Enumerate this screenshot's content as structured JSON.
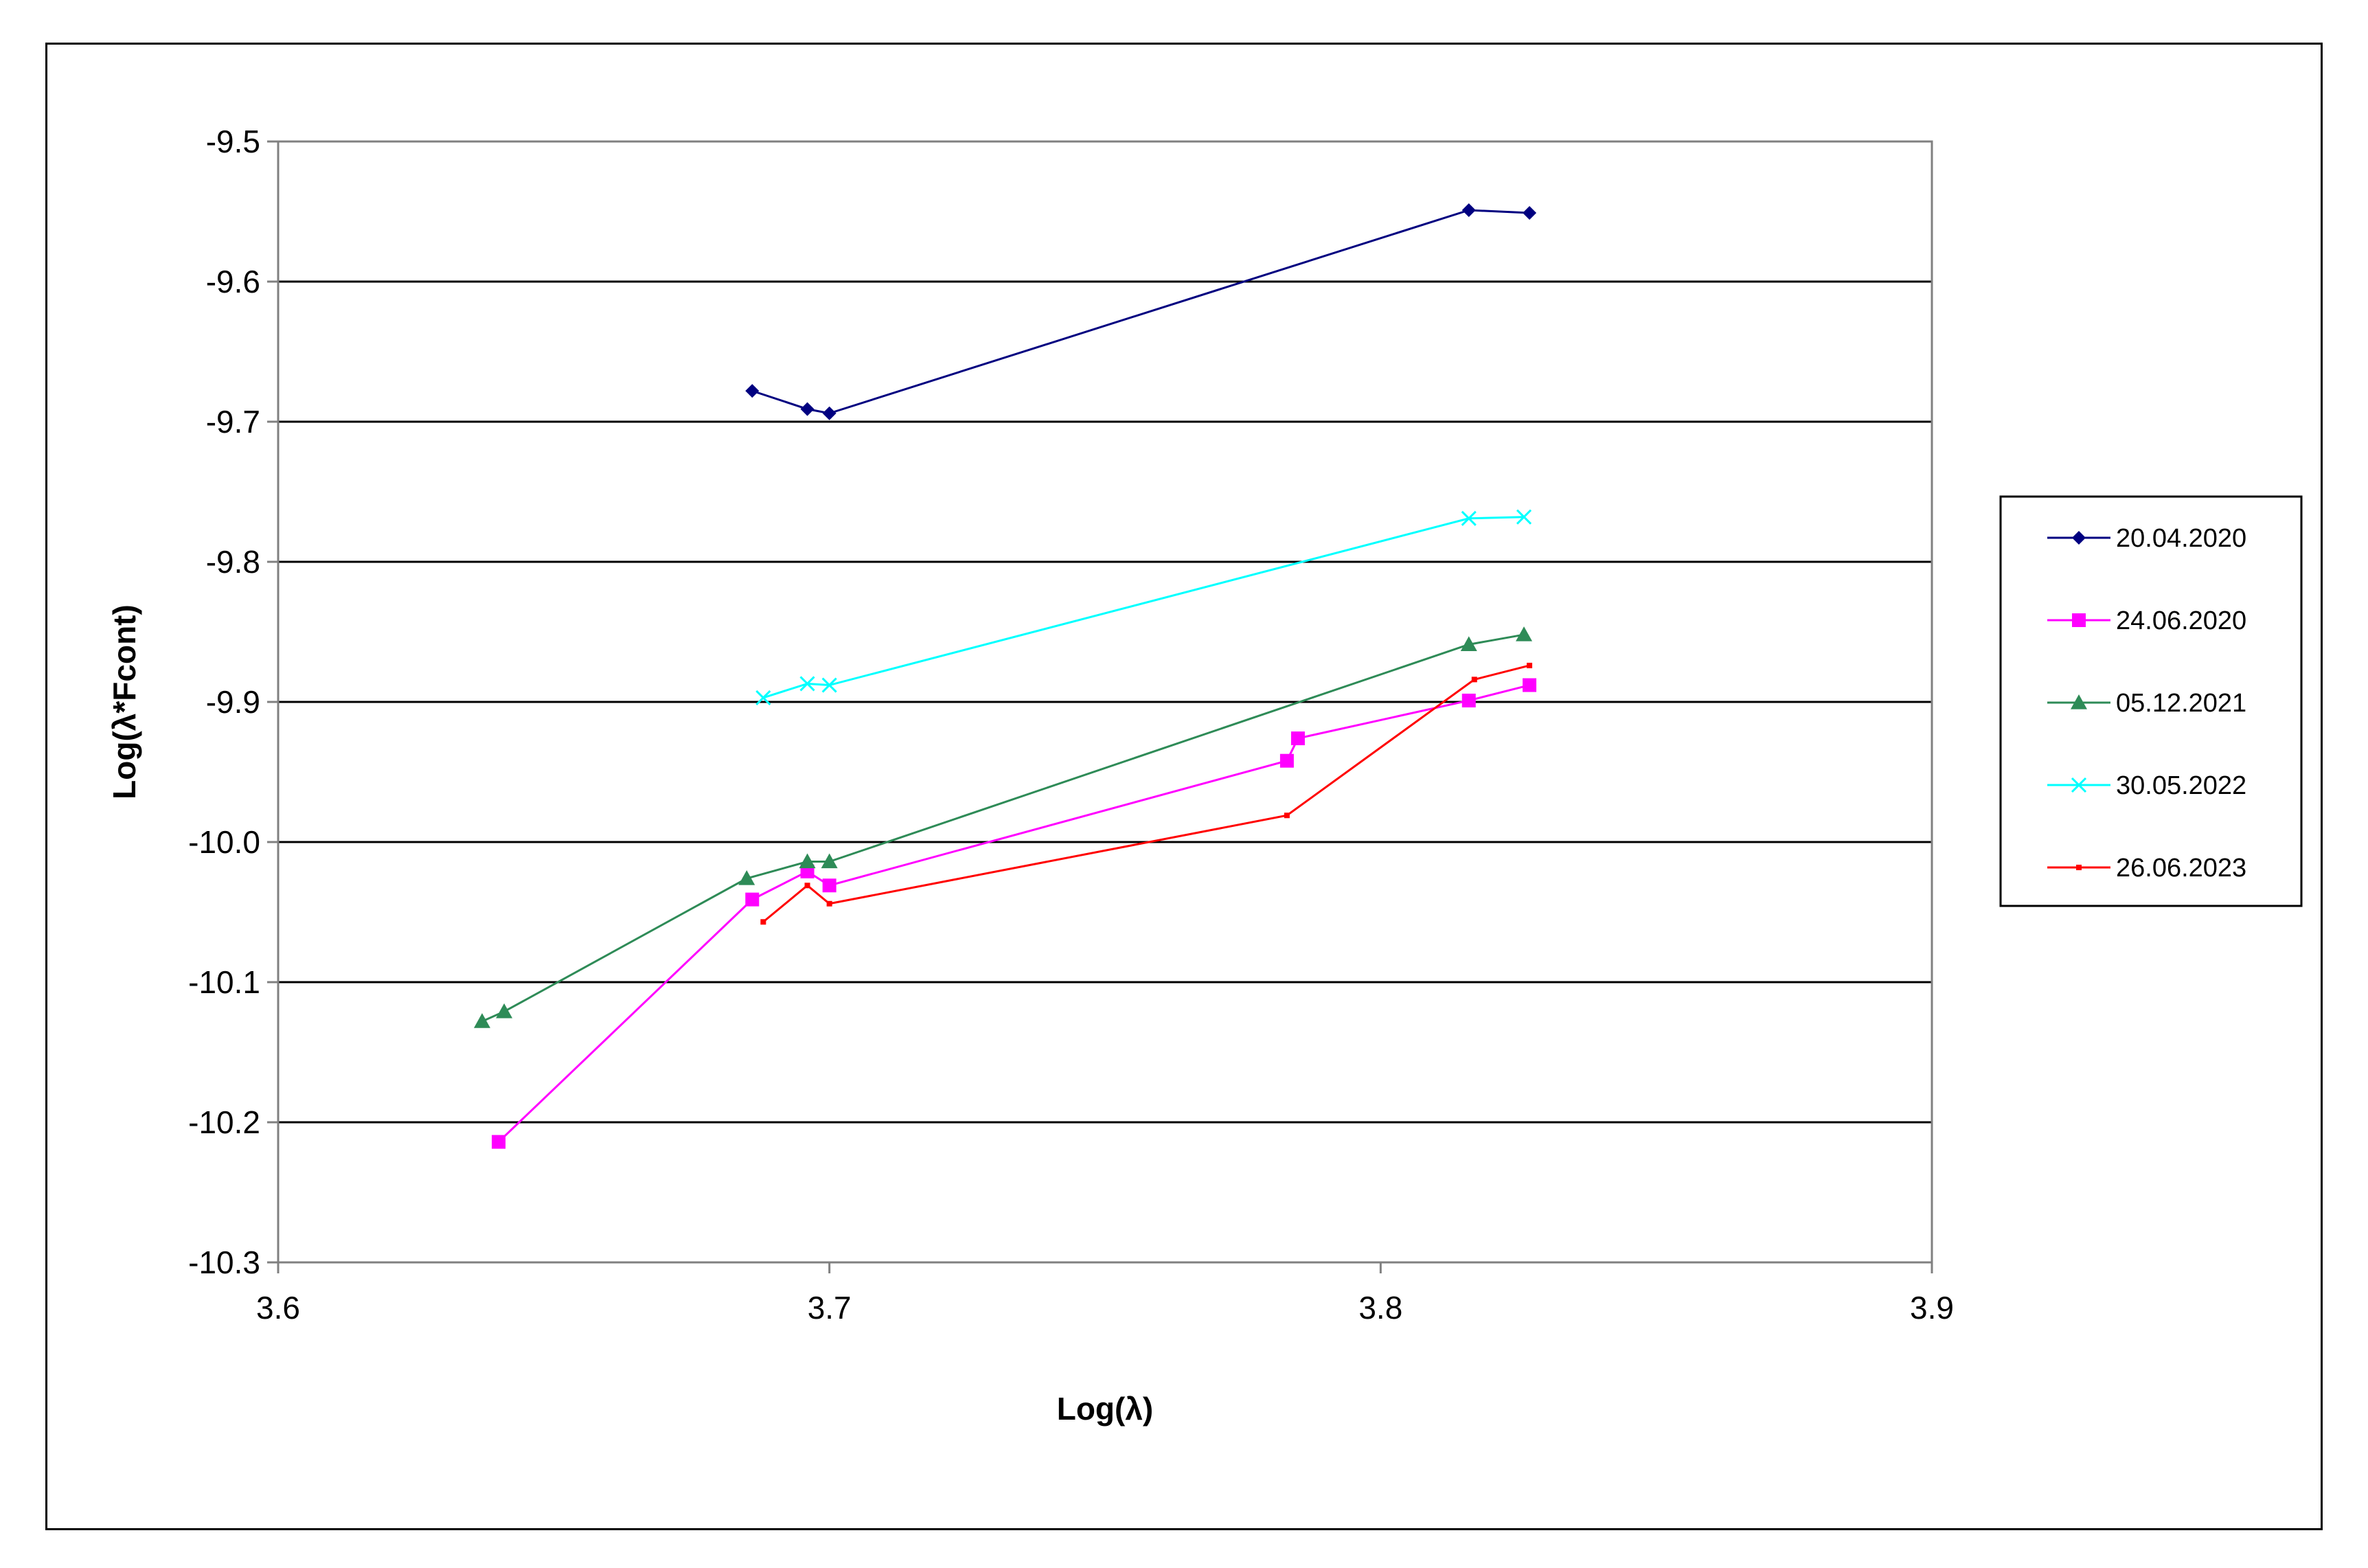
{
  "chart_data": {
    "type": "line",
    "title": "",
    "xlabel": "Log(λ)",
    "ylabel": "Log(λ*Fcont)",
    "xlim": [
      3.6,
      3.9
    ],
    "ylim": [
      -10.3,
      -9.5
    ],
    "x_ticks": [
      "3.6",
      "3.7",
      "3.8",
      "3.9"
    ],
    "y_ticks": [
      "-9.5",
      "-9.6",
      "-9.7",
      "-9.8",
      "-9.9",
      "-10.0",
      "-10.1",
      "-10.2",
      "-10.3"
    ],
    "grid": "horizontal",
    "legend_position": "right",
    "series": [
      {
        "name": "20.04.2020",
        "color": "#000080",
        "marker": "diamond",
        "points": [
          [
            3.686,
            -9.678
          ],
          [
            3.696,
            -9.691
          ],
          [
            3.7,
            -9.694
          ],
          [
            3.816,
            -9.549
          ],
          [
            3.827,
            -9.551
          ]
        ]
      },
      {
        "name": "24.06.2020",
        "color": "#FF00FF",
        "marker": "square",
        "points": [
          [
            3.64,
            -10.214
          ],
          [
            3.686,
            -10.041
          ],
          [
            3.696,
            -10.021
          ],
          [
            3.7,
            -10.031
          ],
          [
            3.783,
            -9.942
          ],
          [
            3.785,
            -9.926
          ],
          [
            3.816,
            -9.899
          ],
          [
            3.827,
            -9.888
          ]
        ]
      },
      {
        "name": "05.12.2021",
        "color": "#2E8B57",
        "marker": "triangle",
        "points": [
          [
            3.637,
            -10.128
          ],
          [
            3.641,
            -10.121
          ],
          [
            3.685,
            -10.026
          ],
          [
            3.696,
            -10.014
          ],
          [
            3.7,
            -10.014
          ],
          [
            3.816,
            -9.859
          ],
          [
            3.826,
            -9.852
          ]
        ]
      },
      {
        "name": "30.05.2022",
        "color": "#00FFFF",
        "marker": "x",
        "points": [
          [
            3.688,
            -9.897
          ],
          [
            3.696,
            -9.887
          ],
          [
            3.7,
            -9.888
          ],
          [
            3.816,
            -9.769
          ],
          [
            3.826,
            -9.768
          ]
        ]
      },
      {
        "name": "26.06.2023",
        "color": "#FF0000",
        "marker": "dot",
        "points": [
          [
            3.688,
            -10.057
          ],
          [
            3.696,
            -10.031
          ],
          [
            3.7,
            -10.044
          ],
          [
            3.783,
            -9.981
          ],
          [
            3.817,
            -9.884
          ],
          [
            3.827,
            -9.874
          ]
        ]
      }
    ]
  }
}
